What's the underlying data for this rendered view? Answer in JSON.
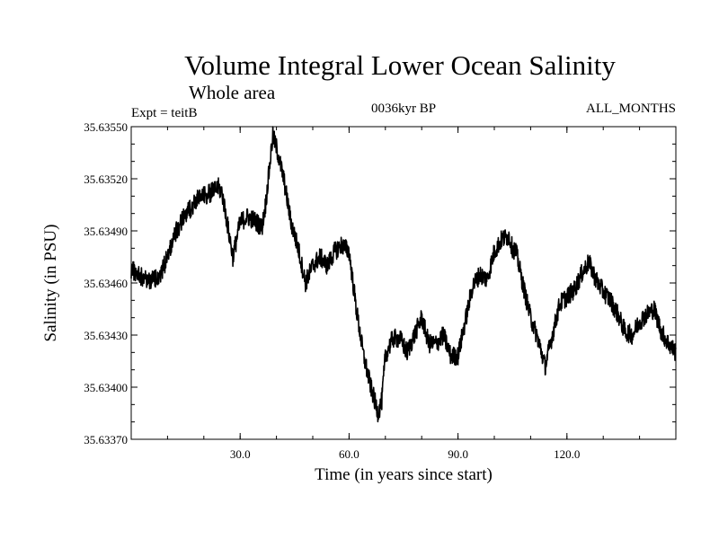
{
  "chart_data": {
    "type": "line",
    "title": "Volume Integral Lower Ocean Salinity",
    "subtitle": "Whole area",
    "experiment": "Expt = teitB",
    "period": "0036kyr BP",
    "months": "ALL_MONTHS",
    "xlabel": "Time (in years since start)",
    "ylabel": "Salinity (in PSU)",
    "xlim": [
      0,
      150
    ],
    "ylim": [
      35.6337,
      35.6355
    ],
    "x_ticks": [
      30,
      60,
      90,
      120
    ],
    "x_tick_labels": [
      "30.0",
      "60.0",
      "90.0",
      "120.0"
    ],
    "y_ticks": [
      35.6337,
      35.634,
      35.6343,
      35.6346,
      35.6349,
      35.6352,
      35.6355
    ],
    "y_tick_labels": [
      "35.63370",
      "35.63400",
      "35.63430",
      "35.63460",
      "35.63490",
      "35.63520",
      "35.63550"
    ],
    "series": [
      {
        "name": "salinity",
        "x": [
          0,
          2,
          4,
          6,
          8,
          10,
          12,
          14,
          16,
          18,
          20,
          22,
          24,
          25,
          26,
          28,
          30,
          32,
          34,
          36,
          37,
          38,
          39,
          40,
          42,
          44,
          46,
          48,
          50,
          52,
          54,
          56,
          58,
          60,
          62,
          64,
          66,
          68,
          69,
          70,
          72,
          74,
          76,
          78,
          80,
          82,
          84,
          86,
          88,
          90,
          92,
          94,
          96,
          98,
          100,
          102,
          104,
          105,
          106,
          108,
          110,
          112,
          114,
          116,
          118,
          120,
          122,
          124,
          126,
          128,
          130,
          132,
          134,
          136,
          138,
          140,
          142,
          144,
          146,
          148,
          150
        ],
        "y": [
          35.63468,
          35.63465,
          35.63462,
          35.63462,
          35.63465,
          35.63475,
          35.63488,
          35.63496,
          35.63502,
          35.63508,
          35.6351,
          35.63512,
          35.63515,
          35.63512,
          35.635,
          35.63475,
          35.63495,
          35.63498,
          35.63496,
          35.63492,
          35.63505,
          35.63525,
          35.63545,
          35.63538,
          35.6352,
          35.63495,
          35.6348,
          35.6346,
          35.6347,
          35.63475,
          35.6347,
          35.63478,
          35.63482,
          35.63478,
          35.63445,
          35.63418,
          35.634,
          35.63385,
          35.63392,
          35.63418,
          35.63428,
          35.63428,
          35.6342,
          35.6343,
          35.6344,
          35.63425,
          35.63425,
          35.6343,
          35.63418,
          35.63418,
          35.63438,
          35.63458,
          35.63465,
          35.63462,
          35.63478,
          35.63485,
          35.63487,
          35.6348,
          35.63478,
          35.63458,
          35.6344,
          35.63428,
          35.63412,
          35.6343,
          35.63448,
          35.63452,
          35.63456,
          35.63465,
          35.63472,
          35.63462,
          35.63455,
          35.6345,
          35.63442,
          35.63432,
          35.6343,
          35.63438,
          35.63442,
          35.63445,
          35.63432,
          35.63425,
          35.6342
        ]
      }
    ]
  }
}
